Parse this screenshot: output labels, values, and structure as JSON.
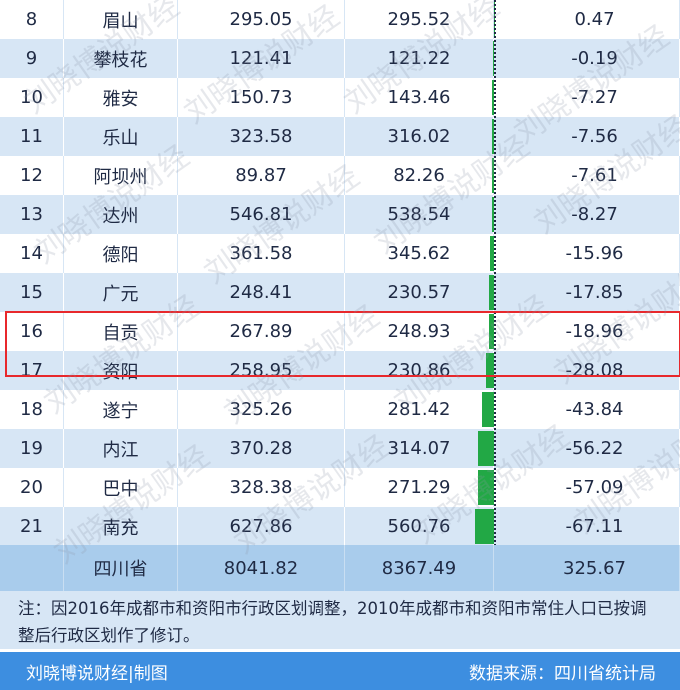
{
  "rows": [
    {
      "rank": "8",
      "city": "眉山",
      "v2020": "295.05",
      "v2010": "295.52",
      "diff": "0.47",
      "change": 0.47
    },
    {
      "rank": "9",
      "city": "攀枝花",
      "v2020": "121.41",
      "v2010": "121.22",
      "diff": "-0.19",
      "change": -0.19
    },
    {
      "rank": "10",
      "city": "雅安",
      "v2020": "150.73",
      "v2010": "143.46",
      "diff": "-7.27",
      "change": -7.27
    },
    {
      "rank": "11",
      "city": "乐山",
      "v2020": "323.58",
      "v2010": "316.02",
      "diff": "-7.56",
      "change": -7.56
    },
    {
      "rank": "12",
      "city": "阿坝州",
      "v2020": "89.87",
      "v2010": "82.26",
      "diff": "-7.61",
      "change": -7.61
    },
    {
      "rank": "13",
      "city": "达州",
      "v2020": "546.81",
      "v2010": "538.54",
      "diff": "-8.27",
      "change": -8.27
    },
    {
      "rank": "14",
      "city": "德阳",
      "v2020": "361.58",
      "v2010": "345.62",
      "diff": "-15.96",
      "change": -15.96
    },
    {
      "rank": "15",
      "city": "广元",
      "v2020": "248.41",
      "v2010": "230.57",
      "diff": "-17.85",
      "change": -17.85
    },
    {
      "rank": "16",
      "city": "自贡",
      "v2020": "267.89",
      "v2010": "248.93",
      "diff": "-18.96",
      "change": -18.96
    },
    {
      "rank": "17",
      "city": "资阳",
      "v2020": "258.95",
      "v2010": "230.86",
      "diff": "-28.08",
      "change": -28.08
    },
    {
      "rank": "18",
      "city": "遂宁",
      "v2020": "325.26",
      "v2010": "281.42",
      "diff": "-43.84",
      "change": -43.84
    },
    {
      "rank": "19",
      "city": "内江",
      "v2020": "370.28",
      "v2010": "314.07",
      "diff": "-56.22",
      "change": -56.22
    },
    {
      "rank": "20",
      "city": "巴中",
      "v2020": "328.38",
      "v2010": "271.29",
      "diff": "-57.09",
      "change": -57.09
    },
    {
      "rank": "21",
      "city": "南充",
      "v2020": "627.86",
      "v2010": "560.76",
      "diff": "-67.11",
      "change": -67.11
    }
  ],
  "total": {
    "label": "四川省",
    "v2020": "8041.82",
    "v2010": "8367.49",
    "diff": "325.67"
  },
  "note": "注：因2016年成都市和资阳市行政区划调整，2010年成都市和资阳市常住人口已按调整后行政区划作了修订。",
  "footer": {
    "left": "刘晓博说财经|制图",
    "right": "数据来源：四川省统计局"
  },
  "watermark": "刘晓博说财经",
  "highlighted_ranks": [
    "16",
    "17"
  ],
  "colors": {
    "bar": "#22a845",
    "highlight": "#e8282c",
    "footer_bg": "#3d8ee0",
    "row_alt": "#d7e6f5",
    "total_bg": "#a9ccec"
  }
}
